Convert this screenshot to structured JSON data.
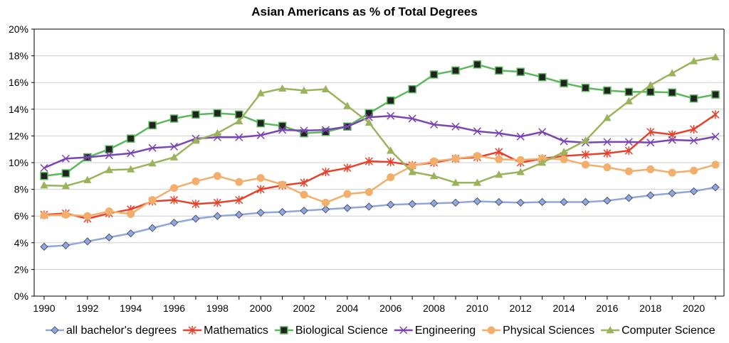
{
  "chart_data": {
    "type": "line",
    "title": "Asian Americans as % of Total Degrees",
    "xlabel": "",
    "ylabel": "",
    "x": [
      1990,
      1991,
      1992,
      1993,
      1994,
      1995,
      1996,
      1997,
      1998,
      1999,
      2000,
      2001,
      2002,
      2003,
      2004,
      2005,
      2006,
      2007,
      2008,
      2009,
      2010,
      2011,
      2012,
      2013,
      2014,
      2015,
      2016,
      2017,
      2018,
      2019,
      2020,
      2021
    ],
    "x_tick_labels": [
      "1990",
      "1992",
      "1994",
      "1996",
      "1998",
      "2000",
      "2002",
      "2004",
      "2006",
      "2008",
      "2010",
      "2012",
      "2014",
      "2016",
      "2018",
      "2020"
    ],
    "xlim": [
      1990,
      2021
    ],
    "ylim": [
      0,
      20
    ],
    "y_tick_labels": [
      "0%",
      "2%",
      "4%",
      "6%",
      "8%",
      "10%",
      "12%",
      "14%",
      "16%",
      "18%",
      "20%"
    ],
    "grid": "horizontal",
    "legend_position": "bottom",
    "series": [
      {
        "name": "all bachelor's degrees",
        "color": "#8FA8D8",
        "marker": "diamond",
        "values": [
          3.7,
          3.8,
          4.1,
          4.4,
          4.7,
          5.1,
          5.5,
          5.8,
          6.0,
          6.1,
          6.25,
          6.3,
          6.4,
          6.5,
          6.6,
          6.7,
          6.85,
          6.9,
          6.95,
          7.0,
          7.1,
          7.05,
          7.0,
          7.05,
          7.05,
          7.05,
          7.15,
          7.35,
          7.55,
          7.7,
          7.85,
          8.15
        ]
      },
      {
        "name": "Mathematics",
        "color": "#E8402A",
        "marker": "star",
        "values": [
          6.1,
          6.2,
          5.8,
          6.2,
          6.5,
          7.1,
          7.2,
          6.9,
          7.0,
          7.2,
          8.0,
          8.3,
          8.5,
          9.3,
          9.6,
          10.1,
          10.05,
          9.8,
          10.0,
          10.3,
          10.4,
          10.8,
          10.0,
          10.3,
          10.5,
          10.6,
          10.7,
          10.9,
          12.3,
          12.1,
          12.5,
          13.6
        ]
      },
      {
        "name": "Biological Science",
        "color": "#5BB85B",
        "marker": "square",
        "values": [
          9.0,
          9.2,
          10.4,
          11.0,
          11.8,
          12.8,
          13.3,
          13.6,
          13.7,
          13.6,
          12.95,
          12.75,
          12.2,
          12.3,
          12.7,
          13.7,
          14.65,
          15.5,
          16.6,
          16.9,
          17.35,
          16.9,
          16.8,
          16.4,
          15.95,
          15.6,
          15.4,
          15.3,
          15.3,
          15.25,
          14.8,
          15.1
        ]
      },
      {
        "name": "Engineering",
        "color": "#7B44B4",
        "marker": "x",
        "values": [
          9.6,
          10.3,
          10.4,
          10.55,
          10.7,
          11.1,
          11.2,
          11.8,
          11.9,
          11.9,
          12.05,
          12.45,
          12.4,
          12.45,
          12.7,
          13.4,
          13.5,
          13.3,
          12.85,
          12.7,
          12.35,
          12.2,
          11.95,
          12.3,
          11.6,
          11.5,
          11.55,
          11.55,
          11.5,
          11.7,
          11.65,
          11.95
        ]
      },
      {
        "name": "Physical Sciences",
        "color": "#F2AE6A",
        "marker": "circle",
        "values": [
          6.05,
          6.1,
          6.0,
          6.35,
          6.15,
          7.2,
          8.1,
          8.6,
          9.0,
          8.55,
          8.85,
          8.35,
          7.6,
          7.0,
          7.65,
          7.8,
          8.9,
          9.75,
          10.1,
          10.3,
          10.5,
          10.25,
          10.2,
          10.3,
          10.25,
          9.85,
          9.65,
          9.35,
          9.5,
          9.25,
          9.4,
          9.85
        ]
      },
      {
        "name": "Computer Science",
        "color": "#9BB35B",
        "marker": "triangle",
        "values": [
          8.3,
          8.25,
          8.7,
          9.45,
          9.5,
          9.95,
          10.4,
          11.65,
          12.2,
          13.1,
          15.2,
          15.55,
          15.4,
          15.5,
          14.25,
          13.0,
          10.9,
          9.3,
          9.0,
          8.5,
          8.5,
          9.1,
          9.3,
          10.0,
          10.8,
          11.65,
          13.35,
          14.6,
          15.8,
          16.7,
          17.6,
          17.9
        ]
      }
    ]
  }
}
